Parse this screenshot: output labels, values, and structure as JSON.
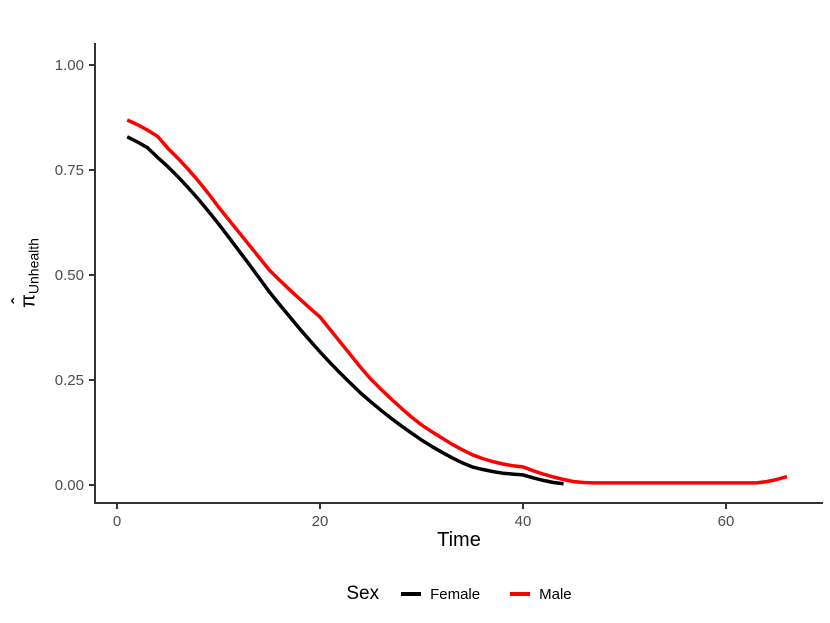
{
  "chart_data": {
    "type": "line",
    "title": "",
    "xlabel": "Time",
    "ylabel": {
      "symbol": "π",
      "hat": "ˆ",
      "subscript": "Unhealth"
    },
    "xlim": [
      -2.17,
      69.56
    ],
    "ylim": [
      -0.0429,
      1.0524
    ],
    "grid": false,
    "axis_color": "#333333",
    "tick_label_color": "#4d4d4d",
    "x_ticks": [
      {
        "value": 0,
        "label": "0"
      },
      {
        "value": 20,
        "label": "20"
      },
      {
        "value": 40,
        "label": "40"
      },
      {
        "value": 60,
        "label": "60"
      }
    ],
    "y_ticks": [
      {
        "value": 0.0,
        "label": "0.00"
      },
      {
        "value": 0.25,
        "label": "0.25"
      },
      {
        "value": 0.5,
        "label": "0.50"
      },
      {
        "value": 0.75,
        "label": "0.75"
      },
      {
        "value": 1.0,
        "label": "1.00"
      }
    ],
    "legend": {
      "title": "Sex",
      "position": "bottom"
    },
    "series": [
      {
        "name": "Female",
        "color": "#000000",
        "x": [
          1,
          2,
          3,
          4,
          5,
          6,
          7,
          8,
          9,
          10,
          11,
          12,
          13,
          14,
          15,
          16,
          17,
          18,
          19,
          20,
          21,
          22,
          23,
          24,
          25,
          26,
          27,
          28,
          29,
          30,
          31,
          32,
          33,
          34,
          35,
          36,
          37,
          38,
          39,
          40,
          41,
          42,
          43,
          44
        ],
        "y": [
          0.829,
          0.817,
          0.803,
          0.78,
          0.758,
          0.734,
          0.708,
          0.681,
          0.652,
          0.622,
          0.59,
          0.558,
          0.526,
          0.493,
          0.46,
          0.43,
          0.401,
          0.372,
          0.344,
          0.317,
          0.291,
          0.266,
          0.242,
          0.219,
          0.198,
          0.178,
          0.159,
          0.141,
          0.124,
          0.107,
          0.092,
          0.078,
          0.065,
          0.053,
          0.043,
          0.037,
          0.032,
          0.028,
          0.026,
          0.024,
          0.017,
          0.011,
          0.006,
          0.003
        ]
      },
      {
        "name": "Male",
        "color": "#ff0000",
        "x": [
          1,
          2,
          3,
          4,
          5,
          6,
          7,
          8,
          9,
          10,
          11,
          12,
          13,
          14,
          15,
          16,
          17,
          18,
          19,
          20,
          21,
          22,
          23,
          24,
          25,
          26,
          27,
          28,
          29,
          30,
          31,
          32,
          33,
          34,
          35,
          36,
          37,
          38,
          39,
          40,
          41,
          42,
          43,
          44,
          45,
          46,
          47,
          48,
          49,
          50,
          51,
          52,
          53,
          54,
          55,
          56,
          57,
          58,
          59,
          60,
          61,
          62,
          63,
          64,
          65,
          66
        ],
        "y": [
          0.869,
          0.858,
          0.845,
          0.83,
          0.802,
          0.778,
          0.752,
          0.724,
          0.694,
          0.662,
          0.632,
          0.602,
          0.572,
          0.542,
          0.512,
          0.488,
          0.465,
          0.443,
          0.421,
          0.4,
          0.37,
          0.34,
          0.31,
          0.28,
          0.252,
          0.228,
          0.205,
          0.183,
          0.162,
          0.143,
          0.127,
          0.112,
          0.097,
          0.084,
          0.072,
          0.063,
          0.056,
          0.05,
          0.046,
          0.043,
          0.034,
          0.026,
          0.019,
          0.013,
          0.008,
          0.006,
          0.005,
          0.005,
          0.005,
          0.005,
          0.005,
          0.005,
          0.005,
          0.005,
          0.005,
          0.005,
          0.005,
          0.005,
          0.005,
          0.005,
          0.005,
          0.005,
          0.005,
          0.008,
          0.013,
          0.02
        ]
      }
    ]
  }
}
